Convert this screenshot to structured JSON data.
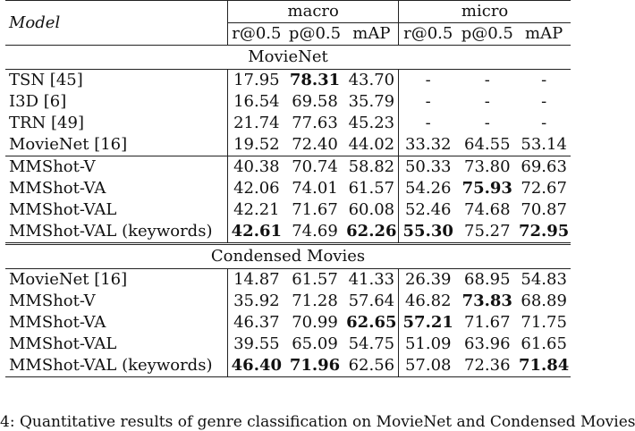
{
  "header": {
    "model": "Model",
    "macro": "macro",
    "micro": "micro",
    "cols": [
      "r@0.5",
      "p@0.5",
      "mAP",
      "r@0.5",
      "p@0.5",
      "mAP"
    ]
  },
  "sections": [
    {
      "title": "MovieNet",
      "groups": [
        {
          "rows": [
            {
              "model": "TSN [45]",
              "v": [
                "17.95",
                "78.31",
                "43.70",
                "-",
                "-",
                "-"
              ],
              "bold": [
                1
              ]
            },
            {
              "model": "I3D [6]",
              "v": [
                "16.54",
                "69.58",
                "35.79",
                "-",
                "-",
                "-"
              ],
              "bold": []
            },
            {
              "model": "TRN [49]",
              "v": [
                "21.74",
                "77.63",
                "45.23",
                "-",
                "-",
                "-"
              ],
              "bold": []
            },
            {
              "model": "MovieNet [16]",
              "v": [
                "19.52",
                "72.40",
                "44.02",
                "33.32",
                "64.55",
                "53.14"
              ],
              "bold": []
            }
          ]
        },
        {
          "rows": [
            {
              "model": "MMShot-V",
              "v": [
                "40.38",
                "70.74",
                "58.82",
                "50.33",
                "73.80",
                "69.63"
              ],
              "bold": []
            },
            {
              "model": "MMShot-VA",
              "v": [
                "42.06",
                "74.01",
                "61.57",
                "54.26",
                "75.93",
                "72.67"
              ],
              "bold": [
                4
              ]
            },
            {
              "model": "MMShot-VAL",
              "v": [
                "42.21",
                "71.67",
                "60.08",
                "52.46",
                "74.68",
                "70.87"
              ],
              "bold": []
            },
            {
              "model": "MMShot-VAL (keywords)",
              "v": [
                "42.61",
                "74.69",
                "62.26",
                "55.30",
                "75.27",
                "72.95"
              ],
              "bold": [
                0,
                2,
                3,
                5
              ]
            }
          ]
        }
      ]
    },
    {
      "title": "Condensed Movies",
      "groups": [
        {
          "rows": [
            {
              "model": "MovieNet [16]",
              "v": [
                "14.87",
                "61.57",
                "41.33",
                "26.39",
                "68.95",
                "54.83"
              ],
              "bold": []
            },
            {
              "model": "MMShot-V",
              "v": [
                "35.92",
                "71.28",
                "57.64",
                "46.82",
                "73.83",
                "68.89"
              ],
              "bold": [
                4
              ]
            },
            {
              "model": "MMShot-VA",
              "v": [
                "46.37",
                "70.99",
                "62.65",
                "57.21",
                "71.67",
                "71.75"
              ],
              "bold": [
                2,
                3
              ]
            },
            {
              "model": "MMShot-VAL",
              "v": [
                "39.55",
                "65.09",
                "54.75",
                "51.09",
                "63.96",
                "61.65"
              ],
              "bold": []
            },
            {
              "model": "MMShot-VAL (keywords)",
              "v": [
                "46.40",
                "71.96",
                "62.56",
                "57.08",
                "72.36",
                "71.84"
              ],
              "bold": [
                0,
                1,
                5
              ]
            }
          ]
        }
      ]
    }
  ],
  "caption": "4: Quantitative results of genre classification on MovieNet and Condensed Movies"
}
